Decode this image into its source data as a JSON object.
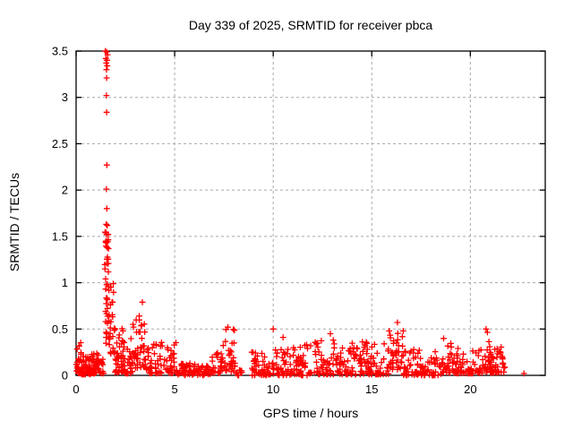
{
  "window": {
    "background": "#ffffff"
  },
  "colors": {
    "axis": "#000000",
    "text": "#000000",
    "marker": "#ff0000",
    "grid": "#a8a8a8",
    "background": "#ffffff"
  },
  "chart_data": {
    "type": "scatter",
    "title": "Day 339 of 2025, SRMTID for receiver pbca",
    "xlabel": "GPS time / hours",
    "ylabel": "SRMTID / TECUs",
    "xlim": [
      0,
      23.8
    ],
    "ylim": [
      0,
      3.5
    ],
    "xticks": [
      0,
      5,
      10,
      15,
      20
    ],
    "xtick_labels": [
      "0",
      "5",
      "10",
      "15",
      "20"
    ],
    "yticks": [
      0,
      0.5,
      1,
      1.5,
      2,
      2.5,
      3,
      3.5
    ],
    "ytick_labels": [
      "0",
      "0.5",
      "1",
      "1.5",
      "2",
      "2.5",
      "3",
      "3.5"
    ],
    "grid": {
      "show": true,
      "color": "#a8a8a8",
      "dash": "3 3"
    },
    "legend_position": "none",
    "seed": 20253,
    "series": [
      {
        "name": "srmtid",
        "marker": "plus",
        "color": "#ff0000",
        "points": [
          [
            1.48,
            3.5
          ],
          [
            1.55,
            3.49
          ],
          [
            1.6,
            3.46
          ],
          [
            1.51,
            3.42
          ],
          [
            1.57,
            3.4
          ],
          [
            1.53,
            3.37
          ],
          [
            1.58,
            3.34
          ],
          [
            1.54,
            3.3
          ],
          [
            1.55,
            3.21
          ],
          [
            1.54,
            3.02
          ],
          [
            1.55,
            2.84
          ],
          [
            1.56,
            2.27
          ],
          [
            1.54,
            2.01
          ],
          [
            1.56,
            1.8
          ],
          [
            1.53,
            1.63
          ],
          [
            1.55,
            1.52
          ],
          [
            1.5,
            1.44
          ],
          [
            1.58,
            1.38
          ],
          [
            3.36,
            0.79
          ],
          [
            3.2,
            0.64
          ],
          [
            7.7,
            0.52
          ],
          [
            10.0,
            0.5
          ],
          [
            10.5,
            0.41
          ],
          [
            12.9,
            0.45
          ],
          [
            16.3,
            0.57
          ],
          [
            20.8,
            0.5
          ],
          [
            22.72,
            0.02
          ]
        ],
        "density_segments": [
          {
            "t0": 0.02,
            "t1": 0.28,
            "n": 28,
            "vmin": 0.02,
            "vmax": 0.36,
            "skew": 2
          },
          {
            "t0": 0.28,
            "t1": 1.15,
            "n": 85,
            "vmin": 0.01,
            "vmax": 0.24,
            "skew": 2
          },
          {
            "t0": 1.15,
            "t1": 1.42,
            "n": 12,
            "vmin": 0.02,
            "vmax": 0.18,
            "skew": 2
          },
          {
            "t0": 1.44,
            "t1": 1.68,
            "n": 40,
            "vmin": 0.3,
            "vmax": 1.62,
            "skew": 1
          },
          {
            "t0": 1.66,
            "t1": 1.95,
            "n": 26,
            "vmin": 0.22,
            "vmax": 1.05,
            "skew": 1.3
          },
          {
            "t0": 1.95,
            "t1": 2.4,
            "n": 40,
            "vmin": 0.03,
            "vmax": 0.58,
            "skew": 2
          },
          {
            "t0": 2.4,
            "t1": 2.85,
            "n": 30,
            "vmin": 0.02,
            "vmax": 0.4,
            "skew": 2
          },
          {
            "t0": 2.85,
            "t1": 3.55,
            "n": 48,
            "vmin": 0.08,
            "vmax": 0.6,
            "skew": 1.6
          },
          {
            "t0": 3.55,
            "t1": 4.2,
            "n": 32,
            "vmin": 0.02,
            "vmax": 0.34,
            "skew": 2
          },
          {
            "t0": 4.2,
            "t1": 5.1,
            "n": 42,
            "vmin": 0.02,
            "vmax": 0.36,
            "skew": 2
          },
          {
            "t0": 5.1,
            "t1": 6.9,
            "n": 80,
            "vmin": 0.0,
            "vmax": 0.13,
            "skew": 1.5
          },
          {
            "t0": 6.9,
            "t1": 7.4,
            "n": 26,
            "vmin": 0.02,
            "vmax": 0.28,
            "skew": 2
          },
          {
            "t0": 7.4,
            "t1": 8.05,
            "n": 32,
            "vmin": 0.04,
            "vmax": 0.5,
            "skew": 1.6
          },
          {
            "t0": 8.05,
            "t1": 8.45,
            "n": 12,
            "vmin": 0.0,
            "vmax": 0.17,
            "skew": 2
          },
          {
            "t0": 8.9,
            "t1": 9.9,
            "n": 48,
            "vmin": 0.0,
            "vmax": 0.27,
            "skew": 2
          },
          {
            "t0": 9.9,
            "t1": 11.1,
            "n": 55,
            "vmin": 0.0,
            "vmax": 0.3,
            "skew": 2
          },
          {
            "t0": 11.1,
            "t1": 12.0,
            "n": 42,
            "vmin": 0.0,
            "vmax": 0.33,
            "skew": 2
          },
          {
            "t0": 12.0,
            "t1": 13.1,
            "n": 52,
            "vmin": 0.01,
            "vmax": 0.4,
            "skew": 2
          },
          {
            "t0": 13.1,
            "t1": 14.6,
            "n": 66,
            "vmin": 0.01,
            "vmax": 0.38,
            "skew": 2
          },
          {
            "t0": 14.6,
            "t1": 15.85,
            "n": 58,
            "vmin": 0.01,
            "vmax": 0.36,
            "skew": 2
          },
          {
            "t0": 15.85,
            "t1": 16.6,
            "n": 40,
            "vmin": 0.05,
            "vmax": 0.55,
            "skew": 1.5
          },
          {
            "t0": 16.6,
            "t1": 18.55,
            "n": 85,
            "vmin": 0.0,
            "vmax": 0.28,
            "skew": 2
          },
          {
            "t0": 18.55,
            "t1": 19.15,
            "n": 30,
            "vmin": 0.03,
            "vmax": 0.4,
            "skew": 2
          },
          {
            "t0": 19.15,
            "t1": 20.6,
            "n": 65,
            "vmin": 0.02,
            "vmax": 0.3,
            "skew": 2
          },
          {
            "t0": 20.6,
            "t1": 21.0,
            "n": 22,
            "vmin": 0.04,
            "vmax": 0.48,
            "skew": 1.8
          },
          {
            "t0": 21.0,
            "t1": 21.8,
            "n": 48,
            "vmin": 0.03,
            "vmax": 0.33,
            "skew": 2
          }
        ]
      }
    ]
  }
}
